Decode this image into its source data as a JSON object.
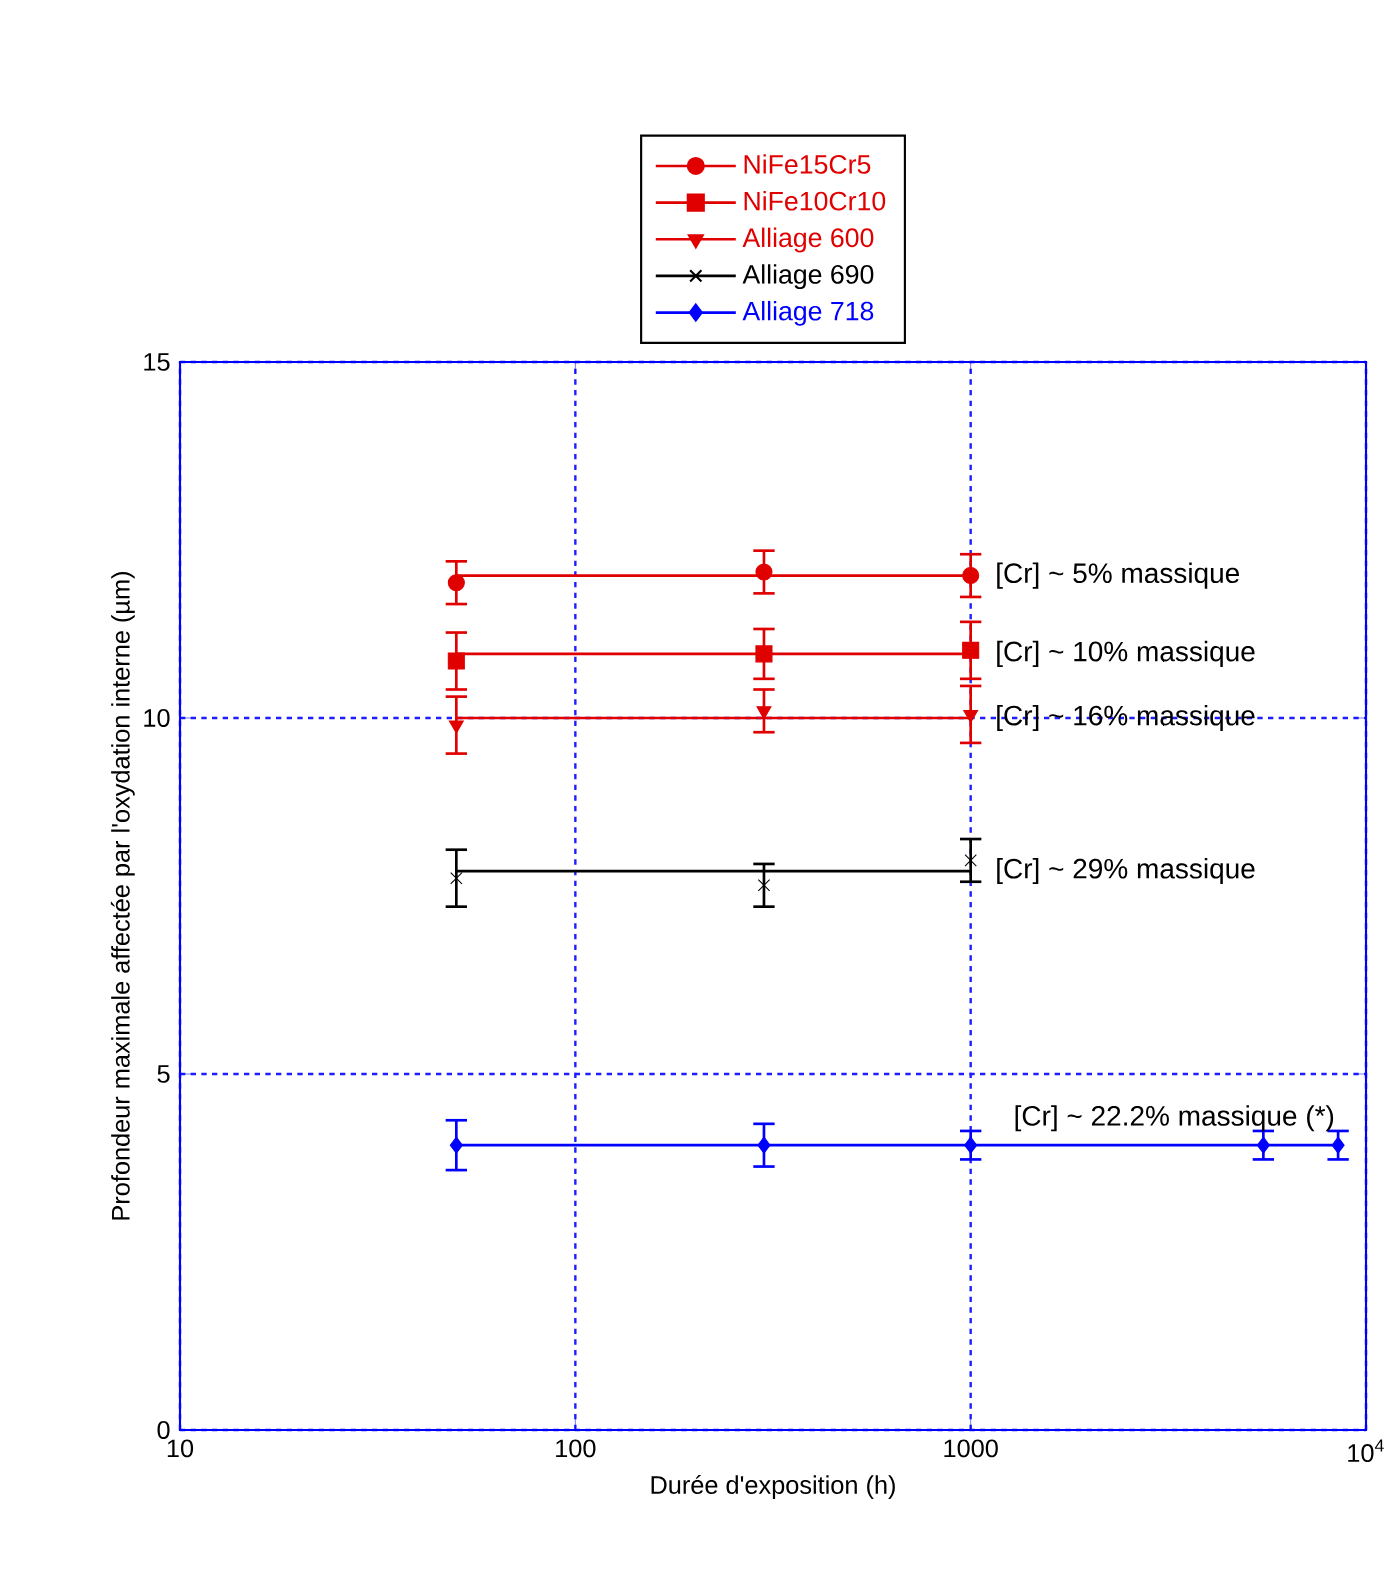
{
  "chart_data": {
    "type": "scatter",
    "xlabel": "Durée d'exposition (h)",
    "ylabel": "Profondeur maximale affectée par l'oxydation interne (µm)",
    "log": "x",
    "xlim": [
      10,
      10000
    ],
    "xticks": [
      10,
      100,
      1000,
      {
        "value": 10000,
        "label": "10$^{4}$"
      }
    ],
    "ylim": [
      0,
      15
    ],
    "yticks": [
      0,
      5,
      10,
      15
    ],
    "grid": true,
    "legend": "top",
    "series": [
      {
        "name": "NiFe15Cr5",
        "marker": "circle",
        "color": "#e00000",
        "x": [
          50,
          300,
          1000
        ],
        "values": [
          11.9,
          12.05,
          12.0
        ],
        "errors": [
          0.3,
          0.3,
          0.3
        ]
      },
      {
        "name": "NiFe10Cr10",
        "marker": "square",
        "color": "#e00000",
        "x": [
          50,
          300,
          1000
        ],
        "values": [
          10.8,
          10.9,
          10.95
        ],
        "errors": [
          0.4,
          0.35,
          0.4
        ]
      },
      {
        "name": "Alliage 600",
        "marker": "triangle",
        "color": "#e00000",
        "x": [
          50,
          300,
          1000
        ],
        "values": [
          9.9,
          10.1,
          10.05
        ],
        "errors": [
          0.4,
          0.3,
          0.4
        ]
      },
      {
        "name": "Alliage 690",
        "marker": "cross",
        "color": "#000000",
        "x": [
          50,
          300,
          1000
        ],
        "values": [
          7.75,
          7.65,
          8.0
        ],
        "errors": [
          0.4,
          0.3,
          0.3
        ]
      },
      {
        "name": "Alliage 718",
        "marker": "diamond",
        "color": "#0000ff",
        "x": [
          50,
          300,
          1000,
          5500,
          8500
        ],
        "values": [
          4.0,
          4.0,
          4.0,
          4.0,
          4.0
        ],
        "errors": [
          0.35,
          0.3,
          0.2,
          0.2,
          0.2
        ]
      },
      {
        "type": "line",
        "color": "#e00000",
        "x": [
          50,
          1000
        ],
        "values": [
          12.0,
          12.0
        ]
      },
      {
        "type": "line",
        "color": "#e00000",
        "x": [
          50,
          1000
        ],
        "values": [
          10.9,
          10.9
        ]
      },
      {
        "type": "line",
        "color": "#e00000",
        "x": [
          50,
          1000
        ],
        "values": [
          10.0,
          10.0
        ]
      },
      {
        "type": "line",
        "color": "#000000",
        "x": [
          50,
          1000
        ],
        "values": [
          7.85,
          7.85
        ]
      },
      {
        "type": "line",
        "color": "#0000ff",
        "x": [
          50,
          8500
        ],
        "values": [
          4.0,
          4.0
        ]
      }
    ],
    "annotations": [
      "[Cr] ~ 5% massique",
      "[Cr] ~ 10% massique",
      "[Cr] ~ 16% massique",
      "[Cr] ~ 29% massique",
      "[Cr] ~ 22.2% massique (*)"
    ]
  }
}
